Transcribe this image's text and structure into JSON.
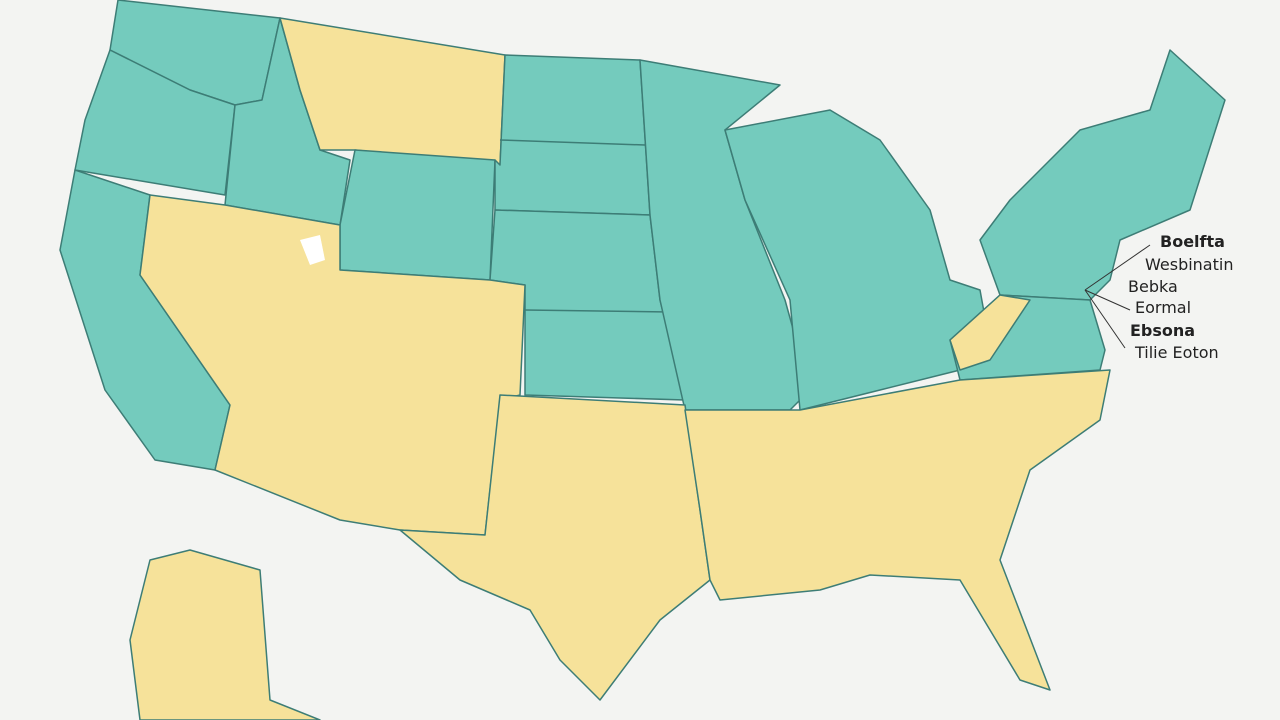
{
  "labels": [
    "Boelfta",
    "Wesbinatin",
    "Bebka",
    "Eormal",
    "Ebsona",
    "Tilie Eoton"
  ]
}
